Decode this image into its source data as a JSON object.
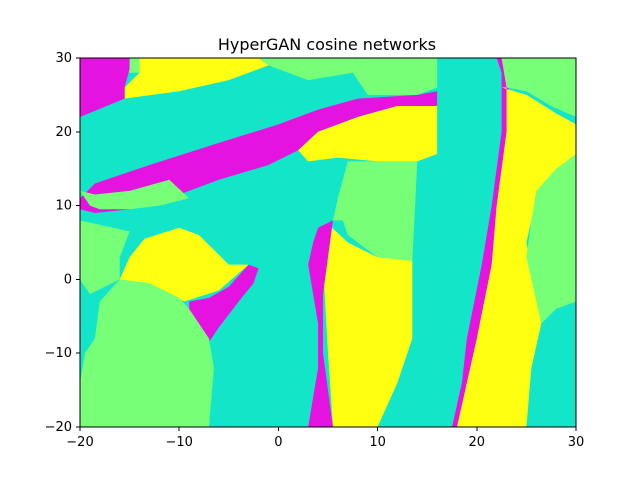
{
  "chart_data": {
    "type": "heatmap",
    "title": "HyperGAN cosine networks",
    "xlabel": "",
    "ylabel": "",
    "xlim": [
      -20,
      30
    ],
    "ylim": [
      -20,
      30
    ],
    "x_ticks": [
      -20,
      -10,
      0,
      10,
      20,
      30
    ],
    "y_ticks": [
      -20,
      -10,
      0,
      10,
      20,
      30
    ],
    "grid": false,
    "legend": "none",
    "colors": {
      "cyan": "#13e6c8",
      "green": "#78ff78",
      "yellow": "#ffff12",
      "magenta": "#e513e0"
    },
    "regions": [
      {
        "name": "background-cyan",
        "color": "cyan",
        "polygon": [
          [
            -20,
            -20
          ],
          [
            30,
            -20
          ],
          [
            30,
            30
          ],
          [
            -20,
            30
          ]
        ]
      },
      {
        "name": "top-left-green",
        "color": "green",
        "polygon": [
          [
            -20,
            30
          ],
          [
            -14,
            30
          ],
          [
            -14,
            28
          ],
          [
            -20,
            28
          ]
        ]
      },
      {
        "name": "top-yellow",
        "color": "yellow",
        "polygon": [
          [
            -14,
            30
          ],
          [
            -2,
            30
          ],
          [
            -1,
            29
          ],
          [
            -5,
            27
          ],
          [
            -10,
            25.5
          ],
          [
            -15.5,
            24.5
          ],
          [
            -15.5,
            26
          ],
          [
            -14,
            28
          ]
        ]
      },
      {
        "name": "top-green-center",
        "color": "green",
        "polygon": [
          [
            -2,
            30
          ],
          [
            8,
            30
          ],
          [
            7.5,
            28
          ],
          [
            3,
            27
          ],
          [
            -1,
            29
          ]
        ]
      },
      {
        "name": "top-right-green-a",
        "color": "green",
        "polygon": [
          [
            8,
            30
          ],
          [
            16,
            30
          ],
          [
            16,
            26
          ],
          [
            14,
            25
          ],
          [
            9,
            25
          ],
          [
            7.5,
            28
          ]
        ]
      },
      {
        "name": "top-left-magenta",
        "color": "magenta",
        "polygon": [
          [
            -20,
            30
          ],
          [
            -15,
            30
          ],
          [
            -15,
            28.5
          ],
          [
            -15.5,
            26
          ],
          [
            -15.5,
            24.5
          ],
          [
            -20,
            22
          ]
        ]
      },
      {
        "name": "diagonal-magenta-band",
        "color": "magenta",
        "polygon": [
          [
            -20,
            11
          ],
          [
            -18.5,
            13
          ],
          [
            -13,
            15.5
          ],
          [
            -6,
            18.5
          ],
          [
            0,
            21
          ],
          [
            4,
            23
          ],
          [
            8,
            24.5
          ],
          [
            14,
            25
          ],
          [
            16,
            25.5
          ],
          [
            16,
            23.5
          ],
          [
            12,
            23.5
          ],
          [
            8,
            22
          ],
          [
            4,
            20
          ],
          [
            2,
            17.5
          ],
          [
            -1,
            15.5
          ],
          [
            -6,
            13.5
          ],
          [
            -11,
            11
          ],
          [
            -15,
            9.5
          ],
          [
            -18.5,
            9
          ],
          [
            -20,
            9.5
          ]
        ]
      },
      {
        "name": "center-top-yellow",
        "color": "yellow",
        "polygon": [
          [
            2,
            17.5
          ],
          [
            4,
            20
          ],
          [
            8,
            22
          ],
          [
            12,
            23.5
          ],
          [
            16,
            23.5
          ],
          [
            16,
            17
          ],
          [
            14,
            16
          ],
          [
            10,
            16
          ],
          [
            6,
            16.5
          ],
          [
            3,
            16
          ]
        ]
      },
      {
        "name": "left-green-small",
        "color": "green",
        "polygon": [
          [
            -20,
            12
          ],
          [
            -19,
            10
          ],
          [
            -18,
            9.5
          ],
          [
            -15,
            9.5
          ],
          [
            -12,
            10
          ],
          [
            -9,
            11
          ],
          [
            -11,
            13.5
          ],
          [
            -15,
            12
          ],
          [
            -18.5,
            11.5
          ]
        ]
      },
      {
        "name": "center-green-polygon",
        "color": "green",
        "polygon": [
          [
            7,
            16
          ],
          [
            14,
            16
          ],
          [
            13.5,
            2.5
          ],
          [
            10,
            3
          ],
          [
            7,
            6
          ],
          [
            6.5,
            8
          ],
          [
            5.5,
            8
          ],
          [
            6,
            11
          ]
        ]
      },
      {
        "name": "left-yellow",
        "color": "yellow",
        "polygon": [
          [
            -16,
            0
          ],
          [
            -15,
            3
          ],
          [
            -13.5,
            5.5
          ],
          [
            -10,
            7
          ],
          [
            -8,
            6
          ],
          [
            -5,
            2
          ],
          [
            -3,
            2
          ],
          [
            -6,
            -1.5
          ],
          [
            -9.5,
            -3
          ],
          [
            -11.5,
            -1.5
          ],
          [
            -14,
            -0.5
          ],
          [
            -16,
            0
          ]
        ]
      },
      {
        "name": "left-magenta-small",
        "color": "magenta",
        "polygon": [
          [
            -9,
            -3
          ],
          [
            -7,
            -2.5
          ],
          [
            -5,
            -1
          ],
          [
            -3,
            2
          ],
          [
            -2,
            1.5
          ],
          [
            -2.5,
            -0.5
          ],
          [
            -4,
            -3
          ],
          [
            -6,
            -6.5
          ],
          [
            -7,
            -8.5
          ],
          [
            -9,
            -5.5
          ]
        ]
      },
      {
        "name": "bottom-left-green",
        "color": "green",
        "polygon": [
          [
            -20,
            -20
          ],
          [
            -7,
            -20
          ],
          [
            -6.5,
            -12
          ],
          [
            -7,
            -8
          ],
          [
            -9,
            -4
          ],
          [
            -10,
            -2.5
          ],
          [
            -13,
            -0.5
          ],
          [
            -16,
            0
          ],
          [
            -18,
            -3
          ],
          [
            -18.5,
            -8
          ],
          [
            -19.5,
            -10
          ],
          [
            -20,
            -14
          ]
        ]
      },
      {
        "name": "green-triangle",
        "color": "green",
        "polygon": [
          [
            -20,
            8
          ],
          [
            -15,
            6.5
          ],
          [
            -16,
            3
          ],
          [
            -16,
            0
          ],
          [
            -19,
            -2
          ],
          [
            -20,
            0
          ]
        ]
      },
      {
        "name": "center-yellow-band",
        "color": "yellow",
        "polygon": [
          [
            5,
            7.5
          ],
          [
            7,
            5
          ],
          [
            10,
            3
          ],
          [
            13.5,
            2.5
          ],
          [
            13.5,
            -8
          ],
          [
            12,
            -14
          ],
          [
            10,
            -20
          ],
          [
            5.5,
            -20
          ],
          [
            5,
            -10
          ],
          [
            4.5,
            2
          ]
        ]
      },
      {
        "name": "center-magenta-thin",
        "color": "magenta",
        "polygon": [
          [
            4,
            7
          ],
          [
            5.5,
            8
          ],
          [
            5,
            3
          ],
          [
            4.5,
            -2
          ],
          [
            4.5,
            -6
          ],
          [
            4.5,
            -10
          ],
          [
            5.5,
            -20
          ],
          [
            3,
            -20
          ],
          [
            4,
            -12
          ],
          [
            4,
            -6
          ],
          [
            3.5,
            -2
          ],
          [
            3,
            2
          ],
          [
            3.5,
            5
          ]
        ]
      },
      {
        "name": "right-magenta-stripe",
        "color": "magenta",
        "polygon": [
          [
            22,
            30
          ],
          [
            22.5,
            28
          ],
          [
            22.5,
            20
          ],
          [
            22,
            15
          ],
          [
            21.5,
            10
          ],
          [
            20.5,
            2
          ],
          [
            19,
            -8
          ],
          [
            18.5,
            -14
          ],
          [
            17.5,
            -20
          ],
          [
            18.5,
            -20
          ],
          [
            19.5,
            -14
          ],
          [
            20.5,
            -8
          ],
          [
            22,
            2
          ],
          [
            22.5,
            10
          ],
          [
            23,
            15
          ],
          [
            23.5,
            20
          ],
          [
            23,
            30
          ]
        ]
      },
      {
        "name": "right-yellow-band",
        "color": "yellow",
        "polygon": [
          [
            22.5,
            26
          ],
          [
            25,
            25
          ],
          [
            28,
            22.5
          ],
          [
            30,
            21
          ],
          [
            30,
            17
          ],
          [
            28,
            14
          ],
          [
            26,
            11
          ],
          [
            25,
            5
          ],
          [
            26.5,
            -6
          ],
          [
            25.5,
            -12
          ],
          [
            25,
            -20
          ],
          [
            18,
            -20
          ],
          [
            19,
            -14
          ],
          [
            20,
            -8
          ],
          [
            21.5,
            2
          ],
          [
            22,
            10
          ],
          [
            22.5,
            15
          ],
          [
            23,
            20
          ],
          [
            23,
            26
          ]
        ]
      },
      {
        "name": "right-green-top",
        "color": "green",
        "polygon": [
          [
            22.5,
            30
          ],
          [
            30,
            30
          ],
          [
            30,
            22
          ],
          [
            27.5,
            23.5
          ],
          [
            25,
            25.5
          ],
          [
            23,
            26
          ]
        ]
      },
      {
        "name": "right-green-mid",
        "color": "green",
        "polygon": [
          [
            30,
            17
          ],
          [
            30,
            -3
          ],
          [
            28,
            -4
          ],
          [
            26.5,
            -6
          ],
          [
            25,
            3
          ],
          [
            25.5,
            8
          ],
          [
            26,
            12
          ],
          [
            28,
            15
          ]
        ]
      }
    ]
  }
}
